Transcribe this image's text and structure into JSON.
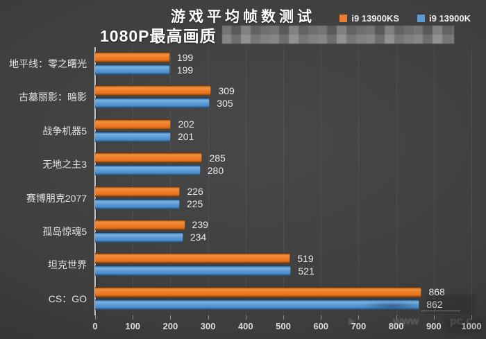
{
  "chart_data": {
    "type": "bar",
    "orientation": "horizontal",
    "title": "游戏平均帧数测试",
    "subtitle": "1080P最高画质",
    "categories": [
      "地平线：零之曙光",
      "古墓丽影：暗影",
      "战争机器5",
      "无地之主3",
      "赛博朋克2077",
      "孤岛惊魂5",
      "坦克世界",
      "CS：GO"
    ],
    "series": [
      {
        "name": "i9 13900KS",
        "color": "#ED7D31",
        "values": [
          199,
          309,
          202,
          285,
          226,
          239,
          519,
          868
        ]
      },
      {
        "name": "i9 13900K",
        "color": "#5B9BD5",
        "values": [
          199,
          305,
          201,
          280,
          225,
          234,
          521,
          862
        ]
      }
    ],
    "xlim": [
      0,
      1000
    ],
    "xticks": [
      0,
      100,
      200,
      300,
      400,
      500,
      600,
      700,
      800,
      900,
      1000
    ],
    "grid": true,
    "legend_position": "top-right",
    "value_labels": true
  },
  "decorations": {
    "watermark_fragments": [
      "www",
      "pc.c"
    ]
  },
  "colors": {
    "background_center": "#484848",
    "background_edge": "#2c2c2c",
    "grid": "#555555",
    "axis": "#c9c9c9",
    "text": "#e8e8e8",
    "series_orange": "#ED7D31",
    "series_blue": "#5B9BD5"
  }
}
